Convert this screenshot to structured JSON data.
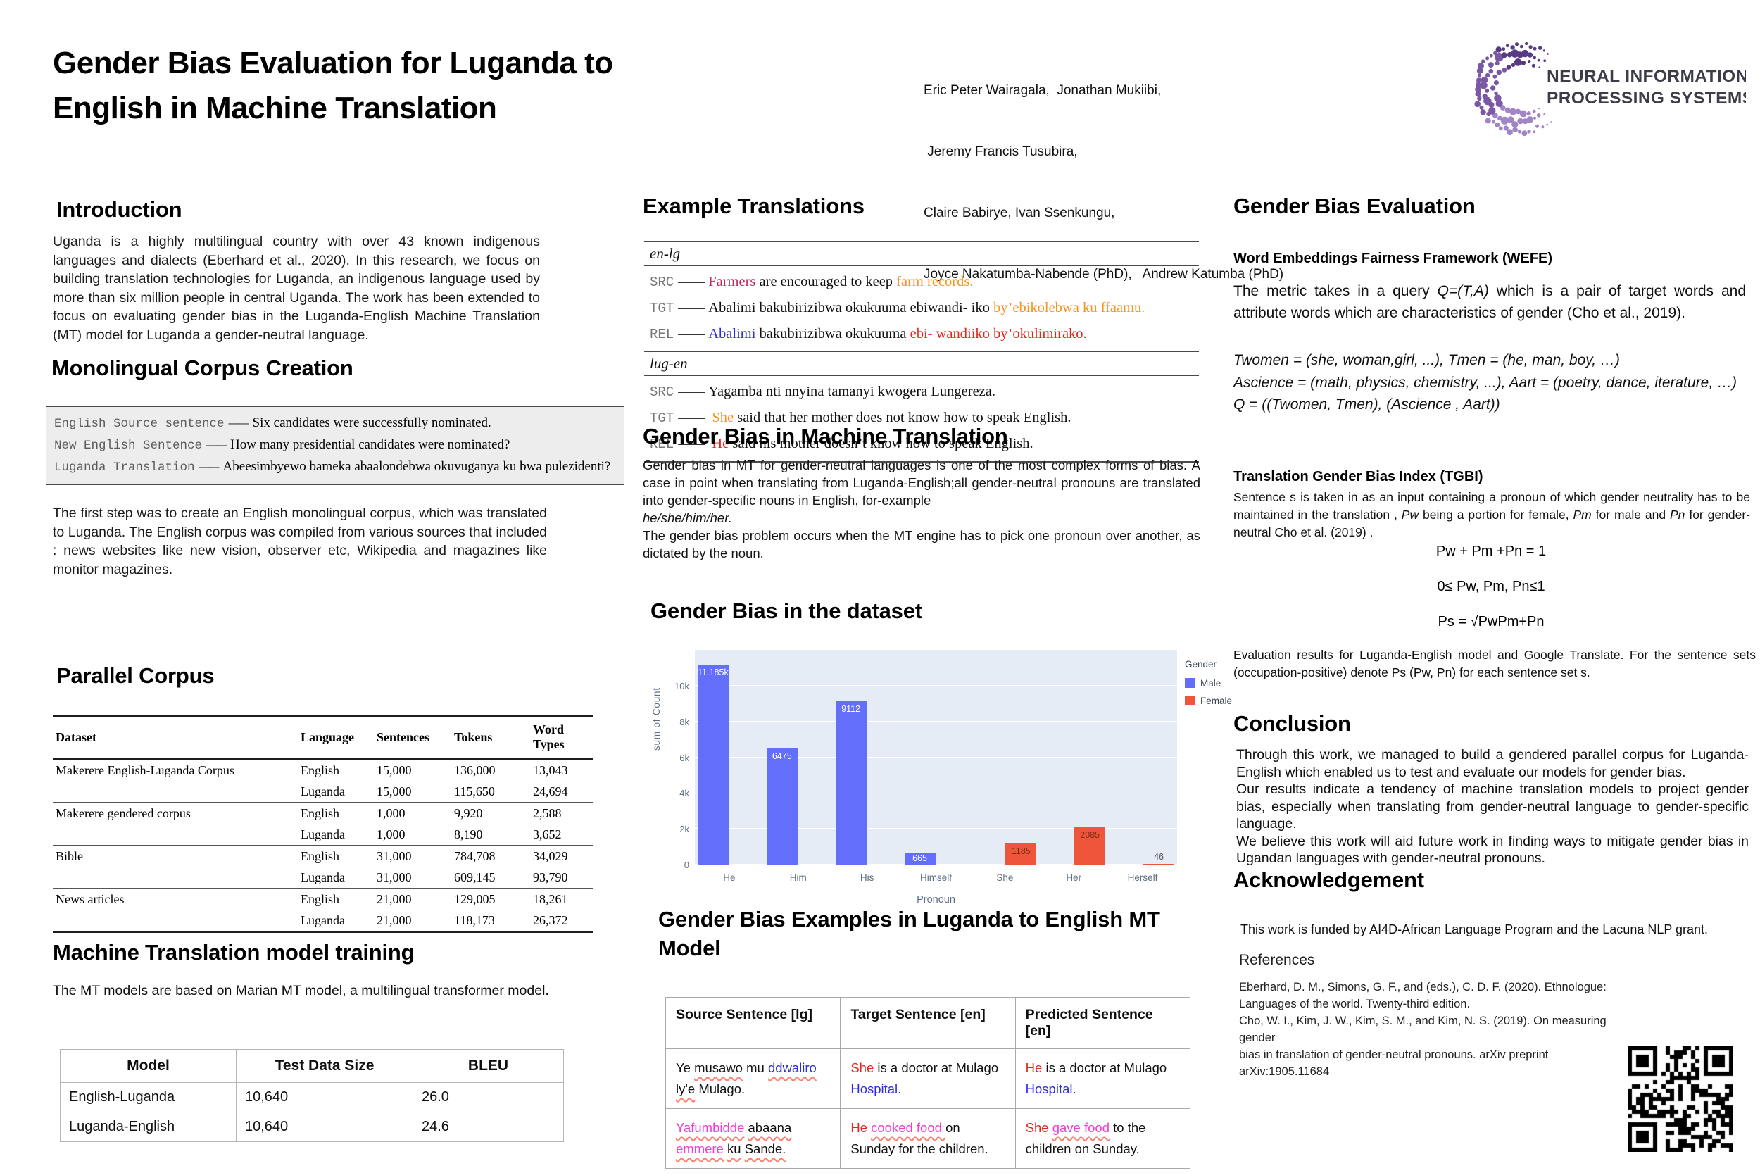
{
  "theme": {
    "male_blue": "#636EFA",
    "female_red": "#EF553B",
    "plot_bg": "#E5ECF6",
    "hl_orange": "#F5941F",
    "hl_red": "#E4251B",
    "hl_blue": "#2D2DDD",
    "hl_crimson": "#C02A5E",
    "hl_magenta": "#F23BD4",
    "underline_red": "#FF8070",
    "logo_purple_dark": "#563A82",
    "logo_purple_mid": "#7A58A5",
    "logo_purple_light": "#A185C4"
  },
  "misc": {
    "dash": "——"
  },
  "header": {
    "title_lines": [
      "Gender Bias Evaluation for Luganda to",
      "English in Machine Translation"
    ],
    "authors": [
      "Eric Peter Wairagala,  Jonathan Mukiibi,",
      " Jeremy Francis Tusubira,",
      "Claire Babirye, Ivan Ssenkungu,",
      "Joyce Nakatumba-Nabende (PhD),   Andrew Katumba (PhD)"
    ],
    "logo_lines": [
      "NEURAL INFORMATION",
      "PROCESSING SYSTEMS"
    ]
  },
  "intro": {
    "heading": "Introduction",
    "body": "Uganda is a highly multilingual country with over 43 known indigenous languages and dialects (Eberhard et al., 2020). In this research, we focus on building translation technologies for Luganda, an indigenous language used by more than six million people in central Uganda. The work has been extended to focus on evaluating gender bias in the Luganda-English Machine Translation (MT) model for  Luganda a gender-neutral language."
  },
  "monolingual": {
    "heading": "Monolingual Corpus Creation",
    "rows": [
      {
        "label": "English Source sentence",
        "text": "Six candidates were successfully nominated."
      },
      {
        "label": "New English Sentence",
        "text": "How many presidential candidates were nominated?"
      },
      {
        "label": "Luganda Translation",
        "text": "Abeesimbyewo bameka abaalondebwa okuvuganya ku bwa pulezidenti?"
      }
    ],
    "body": "The first step was to create an English monolingual corpus, which was translated to Luganda. The English corpus was compiled from various sources that included : news websites like new vision, observer etc, Wikipedia and magazines like monitor magazines."
  },
  "parallel_corpus": {
    "heading": "Parallel Corpus",
    "columns": [
      "Dataset",
      "Language",
      "Sentences",
      "Tokens",
      "Word Types"
    ],
    "rows": [
      {
        "dataset": "Makerere English-Luganda Corpus",
        "language": [
          "English",
          "Luganda"
        ],
        "sentences": [
          "15,000",
          "15,000"
        ],
        "tokens": [
          "136,000",
          "115,650"
        ],
        "word_types": [
          "13,043",
          "24,694"
        ]
      },
      {
        "dataset": "Makerere gendered corpus",
        "language": [
          "English",
          "Luganda"
        ],
        "sentences": [
          "1,000",
          "1,000"
        ],
        "tokens": [
          "9,920",
          "8,190"
        ],
        "word_types": [
          "2,588",
          "3,652"
        ]
      },
      {
        "dataset": "Bible",
        "language": [
          "English",
          "Luganda"
        ],
        "sentences": [
          "31,000",
          "31,000"
        ],
        "tokens": [
          "784,708",
          "609,145"
        ],
        "word_types": [
          "34,029",
          "93,790"
        ]
      },
      {
        "dataset": "News articles",
        "language": [
          "English",
          "Luganda"
        ],
        "sentences": [
          "21,000",
          "21,000"
        ],
        "tokens": [
          "129,005",
          "118,173"
        ],
        "word_types": [
          "18,261",
          "26,372"
        ]
      }
    ]
  },
  "mt_training": {
    "heading": "Machine Translation model training",
    "body": "The MT models are based on Marian MT model, a multilingual transformer model.",
    "table": {
      "columns": [
        "Model",
        "Test Data Size",
        "BLEU"
      ],
      "rows": [
        [
          "English-Luganda",
          "10,640",
          "26.0"
        ],
        [
          "Luganda-English",
          "10,640",
          "24.6"
        ]
      ]
    }
  },
  "example_translations": {
    "heading": "Example Translations",
    "groups": [
      {
        "pair": "en-lg",
        "rows": [
          {
            "label": "SRC",
            "segments": [
              {
                "t": "Farmers",
                "cls": "crimson"
              },
              {
                "t": " are encouraged to keep ",
                "cls": ""
              },
              {
                "t": "farm records.",
                "cls": "orange"
              }
            ]
          },
          {
            "label": "TGT",
            "segments": [
              {
                "t": "Abalimi bakubirizibwa okukuuma ebiwandi- iko ",
                "cls": ""
              },
              {
                "t": "by’ebikolebwa ku ffaamu.",
                "cls": "orange"
              }
            ]
          },
          {
            "label": "REL",
            "segments": [
              {
                "t": "Abalimi",
                "cls": "blue"
              },
              {
                "t": " bakubirizibwa okukuuma ",
                "cls": ""
              },
              {
                "t": "ebi- wandiiko by’okulimirako.",
                "cls": "red"
              }
            ]
          }
        ]
      },
      {
        "pair": "lug-en",
        "rows": [
          {
            "label": "SRC",
            "segments": [
              {
                "t": "Yagamba nti nnyina tamanyi kwogera Lungereza.",
                "cls": ""
              }
            ]
          },
          {
            "label": "TGT",
            "segments": [
              {
                "t": " ",
                "cls": ""
              },
              {
                "t": "She",
                "cls": "orange"
              },
              {
                "t": " said that her mother does not know how to speak English.",
                "cls": ""
              }
            ]
          },
          {
            "label": "REL",
            "segments": [
              {
                "t": " ",
                "cls": ""
              },
              {
                "t": "He",
                "cls": "red"
              },
              {
                "t": " said his mother doesn’t know how to speak English.",
                "cls": ""
              }
            ]
          }
        ]
      }
    ]
  },
  "gb_mt": {
    "heading": "Gender Bias in Machine Translation",
    "p1": "Gender bias in MT for gender-neutral languages is one of the most complex forms of bias. A case in point when translating from Luganda-English;all gender-neutral pronouns are translated into gender-specific nouns in English, for-example",
    "p1_italic": "he/she/him/her.",
    "p2": "The gender bias problem occurs when the MT  engine has to pick one pronoun over another, as dictated by the noun."
  },
  "chart_section": {
    "heading": "Gender Bias in the dataset"
  },
  "chart_data": {
    "type": "bar",
    "title": "Gender Bias in the dataset",
    "xlabel": "Pronoun",
    "ylabel": "sum of Count",
    "categories": [
      "He",
      "Him",
      "His",
      "Himself",
      "She",
      "Her",
      "Herself"
    ],
    "series": [
      {
        "name": "Male",
        "color": "#636EFA",
        "values": [
          11185,
          6475,
          9112,
          665,
          null,
          null,
          null
        ],
        "labels": [
          "11.185k",
          "6475",
          "9112",
          "665",
          null,
          null,
          null
        ]
      },
      {
        "name": "Female",
        "color": "#EF553B",
        "values": [
          null,
          null,
          null,
          null,
          1185,
          2085,
          46
        ],
        "labels": [
          null,
          null,
          null,
          null,
          "1185",
          "2085",
          "46"
        ]
      }
    ],
    "yticks": [
      {
        "v": 0,
        "label": "0"
      },
      {
        "v": 2000,
        "label": "2k"
      },
      {
        "v": 4000,
        "label": "4k"
      },
      {
        "v": 6000,
        "label": "6k"
      },
      {
        "v": 8000,
        "label": "8k"
      },
      {
        "v": 10000,
        "label": "10k"
      }
    ],
    "ymax": 12000,
    "grid": true,
    "legend": {
      "title": "Gender",
      "position": "right",
      "entries": [
        {
          "label": "Male",
          "color": "#636EFA"
        },
        {
          "label": "Female",
          "color": "#EF553B"
        }
      ]
    }
  },
  "mt_examples": {
    "heading": "Gender Bias Examples in Luganda to English MT Model",
    "columns": [
      "Source Sentence [lg]",
      "Target Sentence [en]",
      "Predicted Sentence [en]"
    ],
    "rows": [
      {
        "cells": [
          [
            {
              "t": "Ye ",
              "cls": ""
            },
            {
              "t": "musawo",
              "cls": "uw"
            },
            {
              "t": " mu ",
              "cls": ""
            },
            {
              "t": "ddwaliro",
              "cls": "blue uw"
            },
            {
              "t": " ",
              "cls": ""
            },
            {
              "t": "ly'e",
              "cls": "uw"
            },
            {
              "t": " Mulago.",
              "cls": ""
            }
          ],
          [
            {
              "t": "She",
              "cls": "red"
            },
            {
              "t": " is a doctor at Mulago ",
              "cls": ""
            },
            {
              "t": "Hospital.",
              "cls": "blue"
            }
          ],
          [
            {
              "t": "He",
              "cls": "red"
            },
            {
              "t": " is a doctor at Mulago ",
              "cls": ""
            },
            {
              "t": "Hospital.",
              "cls": "blue"
            }
          ]
        ]
      },
      {
        "cells": [
          [
            {
              "t": "Yafumbidde",
              "cls": "mag uw"
            },
            {
              "t": " ",
              "cls": ""
            },
            {
              "t": "abaana",
              "cls": "uw"
            },
            {
              "t": " ",
              "cls": ""
            },
            {
              "t": "emmere",
              "cls": "mag uw"
            },
            {
              "t": " ",
              "cls": ""
            },
            {
              "t": "ku",
              "cls": "uw"
            },
            {
              "t": " ",
              "cls": ""
            },
            {
              "t": "Sande.",
              "cls": "uw"
            }
          ],
          [
            {
              "t": "He",
              "cls": "red"
            },
            {
              "t": " ",
              "cls": ""
            },
            {
              "t": "cooked food ",
              "cls": "mag uw"
            },
            {
              "t": "on Sunday for the children.",
              "cls": ""
            }
          ],
          [
            {
              "t": "She",
              "cls": "red"
            },
            {
              "t": " ",
              "cls": ""
            },
            {
              "t": "gave food",
              "cls": "mag uw"
            },
            {
              "t": " to the children on Sunday.",
              "cls": ""
            }
          ]
        ]
      }
    ]
  },
  "gb_eval": {
    "heading": "Gender Bias Evaluation",
    "wefe_heading": "Word Embeddings Fairness Framework (WEFE)",
    "wefe_segments": [
      {
        "t": "The metric takes in a query ",
        "cls": ""
      },
      {
        "t": "Q=(T,A)",
        "cls": "i"
      },
      {
        "t": "  which is a pair of target words and attribute words which are characteristics of gender (Cho et al., 2019).",
        "cls": ""
      }
    ],
    "wefe_lines": [
      "Twomen = (she, woman,girl, ...), Tmen = (he, man, boy, …)",
      "Ascience = (math, physics, chemistry, ...), Aart = (poetry, dance, iterature, …)",
      "Q = ((Twomen, Tmen), (Ascience , Aart))"
    ],
    "tgbi_heading": "Translation Gender Bias Index (TGBI)",
    "tgbi_segments": [
      {
        "t": "Sentence s is taken in as an input containing a pronoun of which gender neutrality has to be maintained in the translation , ",
        "cls": ""
      },
      {
        "t": "Pw",
        "cls": "i"
      },
      {
        "t": " being  a portion for female, ",
        "cls": ""
      },
      {
        "t": "Pm",
        "cls": "i"
      },
      {
        "t": " for male and ",
        "cls": ""
      },
      {
        "t": "Pn",
        "cls": "i"
      },
      {
        "t": " for gender-neutral Cho et al. (2019) .",
        "cls": ""
      }
    ],
    "formulas": [
      "Pw + Pm +Pn = 1",
      "0≤ Pw, Pm, Pn≤1",
      "Ps = √PwPm+Pn"
    ],
    "eval_note": "Evaluation results for Luganda-English model and Google Translate. For the sentence sets (occupation-positive) denote Ps (Pw, Pn) for each sentence set s."
  },
  "conclusion": {
    "heading": "Conclusion",
    "body": [
      "Through this work, we managed to build a gendered parallel corpus for Luganda-English which enabled us to test and evaluate our models for gender bias.",
      "Our results indicate a tendency of machine translation models to project gender bias, especially when translating from gender-neutral language to gender-specific language.",
      "We believe this work will aid future work in finding ways to mitigate gender bias in Ugandan languages with gender-neutral pronouns."
    ]
  },
  "acknowledgement": {
    "heading": "Acknowledgement",
    "body": "This work is funded by AI4D-African Language Program and the Lacuna NLP grant."
  },
  "references": {
    "heading": "References",
    "lines": [
      "Eberhard, D. M., Simons, G. F., and  (eds.), C. D. F. (2020). Ethnologue:",
      "Languages of the world. Twenty-third edition.",
      "Cho, W. I., Kim, J. W., Kim, S. M., and Kim, N. S. (2019). On measuring gender",
      "bias in translation of gender-neutral pronouns. arXiv preprint",
      "arXiv:1905.11684"
    ]
  }
}
